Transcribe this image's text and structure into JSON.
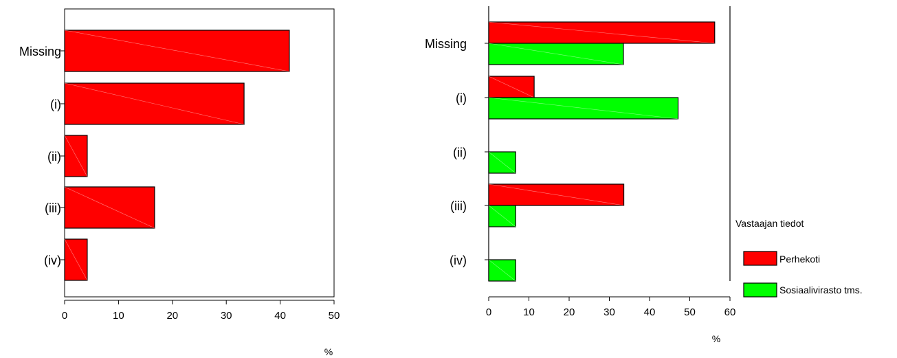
{
  "chart_data": [
    {
      "type": "bar",
      "orientation": "horizontal",
      "categories": [
        "Missing",
        "(i)",
        "(ii)",
        "(iii)",
        "(iv)"
      ],
      "series": [
        {
          "values": [
            41.7,
            33.3,
            4.2,
            16.7,
            4.2
          ],
          "color": "#ff0000"
        }
      ],
      "xlabel": "%",
      "xlim": [
        0,
        50
      ],
      "xticks": [
        "0",
        "10",
        "20",
        "30",
        "40",
        "50"
      ],
      "grid": false
    },
    {
      "type": "bar",
      "orientation": "horizontal",
      "categories": [
        "Missing",
        "(i)",
        "(ii)",
        "(iii)",
        "(iv)"
      ],
      "series": [
        {
          "name": "Perhekoti",
          "values": [
            56.2,
            11.3,
            0,
            33.6,
            0
          ],
          "color": "#ff0000"
        },
        {
          "name": "Sosiaalivirasto tms.",
          "values": [
            33.5,
            47.1,
            6.7,
            6.7,
            6.7
          ],
          "color": "#00ff00"
        }
      ],
      "xlabel": "%",
      "xlim": [
        0,
        60
      ],
      "xticks": [
        "0",
        "10",
        "20",
        "30",
        "40",
        "50",
        "60"
      ],
      "legend": {
        "title": "Vastaajan tiedot",
        "position": "right"
      },
      "grid": false
    }
  ]
}
